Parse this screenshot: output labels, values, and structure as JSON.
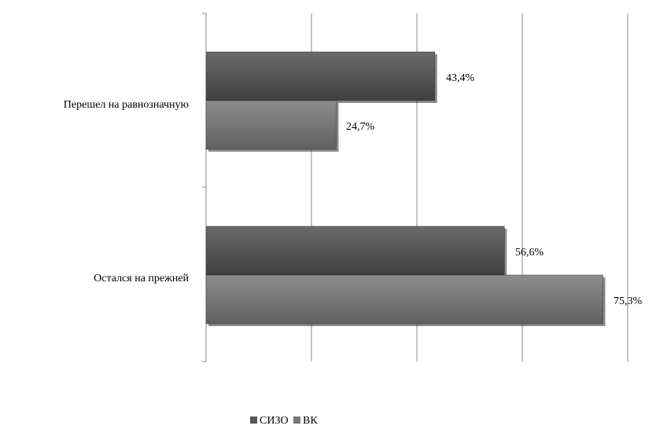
{
  "chart_data": {
    "type": "bar",
    "orientation": "horizontal",
    "categories": [
      "Перешел на равнозначную",
      "Остался на прежней"
    ],
    "series": [
      {
        "name": "СИЗО",
        "values": [
          43.4,
          56.6
        ],
        "labels": [
          "43,4%",
          "56,6%"
        ],
        "color": "#555555"
      },
      {
        "name": "ВК",
        "values": [
          24.7,
          75.3
        ],
        "labels": [
          "24,7%",
          "75,3%"
        ],
        "color": "#777777"
      }
    ],
    "xlim": [
      0,
      80
    ],
    "grid": true,
    "legend": "bottom"
  }
}
